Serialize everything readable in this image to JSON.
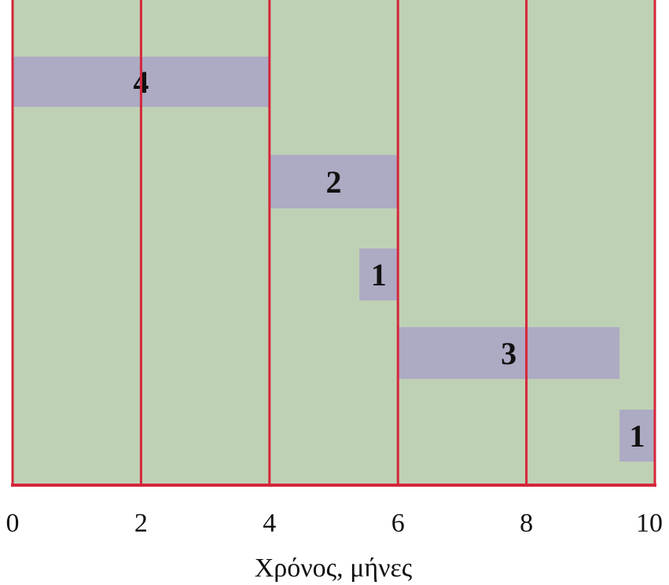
{
  "chart_data": {
    "type": "gantt",
    "title": "",
    "xlabel": "Χρόνος, μήνες",
    "ylabel": "",
    "xlim": [
      0,
      10
    ],
    "x_ticks": [
      0,
      2,
      4,
      6,
      8,
      10
    ],
    "x_tick_labels": [
      "0",
      "2",
      "4",
      "6",
      "8",
      "10"
    ],
    "vertical_gridlines_at": [
      2,
      4,
      6,
      8
    ],
    "grid": true,
    "legend": "none",
    "tasks": [
      {
        "label": "4",
        "start": 0,
        "end": 4
      },
      {
        "label": "2",
        "start": 4,
        "end": 6
      },
      {
        "label": "1",
        "start": 5.4,
        "end": 6
      },
      {
        "label": "3",
        "start": 6,
        "end": 9.45
      },
      {
        "label": "1",
        "start": 9.45,
        "end": 10
      }
    ],
    "colors": {
      "background": "#bfd1b4",
      "bar": "#adaac3",
      "gridline": "#d6253a",
      "text": "#111111"
    }
  }
}
